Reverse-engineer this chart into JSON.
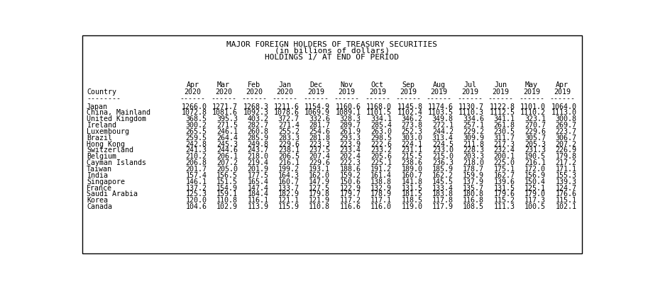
{
  "title_lines": [
    "MAJOR FOREIGN HOLDERS OF TREASURY SECURITIES",
    "(in billions of dollars)",
    "HOLDINGS 1/ AT END OF PERIOD"
  ],
  "col_headers_row1": [
    "Apr",
    "Mar",
    "Feb",
    "Jan",
    "Dec",
    "Nov",
    "Oct",
    "Sep",
    "Aug",
    "Jul",
    "Jun",
    "May",
    "Apr"
  ],
  "col_headers_row2": [
    "2020",
    "2020",
    "2020",
    "2020",
    "2019",
    "2019",
    "2019",
    "2019",
    "2019",
    "2019",
    "2019",
    "2019",
    "2019"
  ],
  "country_col_header": "Country",
  "rows": [
    [
      "Japan",
      "1266.0",
      "1271.7",
      "1268.3",
      "1211.6",
      "1154.9",
      "1160.6",
      "1168.0",
      "1145.8",
      "1174.6",
      "1130.7",
      "1122.8",
      "1101.0",
      "1064.0"
    ],
    [
      "China, Mainland",
      "1072.8",
      "1081.6",
      "1092.3",
      "1078.6",
      "1069.9",
      "1089.1",
      "1101.5",
      "1102.4",
      "1103.5",
      "1110.3",
      "1112.5",
      "1110.2",
      "1113.0"
    ],
    [
      "United Kingdom",
      "368.5",
      "395.3",
      "403.2",
      "372.7",
      "332.6",
      "328.3",
      "334.1",
      "346.2",
      "349.8",
      "334.6",
      "341.1",
      "323.1",
      "300.8"
    ],
    [
      "Ireland",
      "300.2",
      "271.5",
      "282.7",
      "271.4",
      "281.7",
      "289.7",
      "285.4",
      "273.8",
      "272.1",
      "257.1",
      "261.8",
      "270.7",
      "269.7"
    ],
    [
      "Luxembourg",
      "265.5",
      "246.1",
      "260.8",
      "255.2",
      "254.6",
      "261.9",
      "263.0",
      "252.3",
      "244.2",
      "229.2",
      "230.5",
      "229.6",
      "223.7"
    ],
    [
      "Brazil",
      "259.5",
      "264.4",
      "285.9",
      "283.3",
      "281.8",
      "293.3",
      "298.5",
      "303.0",
      "313.4",
      "309.9",
      "311.7",
      "305.7",
      "306.7"
    ],
    [
      "Hong Kong",
      "242.8",
      "245.3",
      "249.8",
      "229.6",
      "223.3",
      "223.9",
      "222.6",
      "224.1",
      "224.5",
      "211.8",
      "217.3",
      "205.3",
      "207.2"
    ],
    [
      "Switzerland",
      "241.3",
      "244.6",
      "243.7",
      "238.1",
      "237.5",
      "233.4",
      "233.2",
      "231.1",
      "233.0",
      "228.3",
      "232.4",
      "231.3",
      "226.9"
    ],
    [
      "Belgium",
      "210.2",
      "206.1",
      "218.0",
      "206.5",
      "207.4",
      "202.4",
      "205.6",
      "215.5",
      "215.0",
      "203.3",
      "200.1",
      "190.5",
      "179.8"
    ],
    [
      "Cayman Islands",
      "206.8",
      "207.2",
      "219.4",
      "216.1",
      "229.6",
      "222.3",
      "225.1",
      "238.6",
      "236.3",
      "218.0",
      "225.0",
      "216.1",
      "217.2"
    ],
    [
      "Taiwan",
      "201.7",
      "205.0",
      "201.9",
      "199.2",
      "193.1",
      "188.6",
      "191.2",
      "189.0",
      "185.9",
      "178.7",
      "175.1",
      "172.0",
      "171.1"
    ],
    [
      "India",
      "157.4",
      "156.5",
      "177.5",
      "164.3",
      "162.0",
      "159.2",
      "161.4",
      "160.7",
      "162.2",
      "159.9",
      "162.7",
      "156.9",
      "155.3"
    ],
    [
      "Singapore",
      "146.1",
      "151.5",
      "165.4",
      "160.7",
      "147.9",
      "150.6",
      "138.8",
      "141.8",
      "145.5",
      "137.9",
      "139.6",
      "150.4",
      "139.3"
    ],
    [
      "France",
      "137.2",
      "154.9",
      "147.4",
      "133.7",
      "127.5",
      "122.9",
      "132.9",
      "131.5",
      "133.4",
      "135.7",
      "131.5",
      "125.1",
      "124.7"
    ],
    [
      "Saudi Arabia",
      "125.3",
      "159.1",
      "184.4",
      "182.9",
      "179.8",
      "179.7",
      "178.9",
      "181.5",
      "183.8",
      "180.8",
      "179.6",
      "179.0",
      "176.6"
    ],
    [
      "Korea",
      "120.0",
      "110.8",
      "116.1",
      "121.1",
      "121.9",
      "117.2",
      "117.1",
      "118.5",
      "117.8",
      "116.8",
      "115.2",
      "117.3",
      "115.1"
    ],
    [
      "Canada",
      "104.6",
      "102.9",
      "113.9",
      "115.9",
      "110.8",
      "116.6",
      "116.0",
      "119.0",
      "117.9",
      "108.5",
      "111.3",
      "100.5",
      "102.1"
    ]
  ],
  "bg_color": "#ffffff",
  "text_color": "#000000",
  "font_size": 7.2,
  "title_font_size": 8.0
}
